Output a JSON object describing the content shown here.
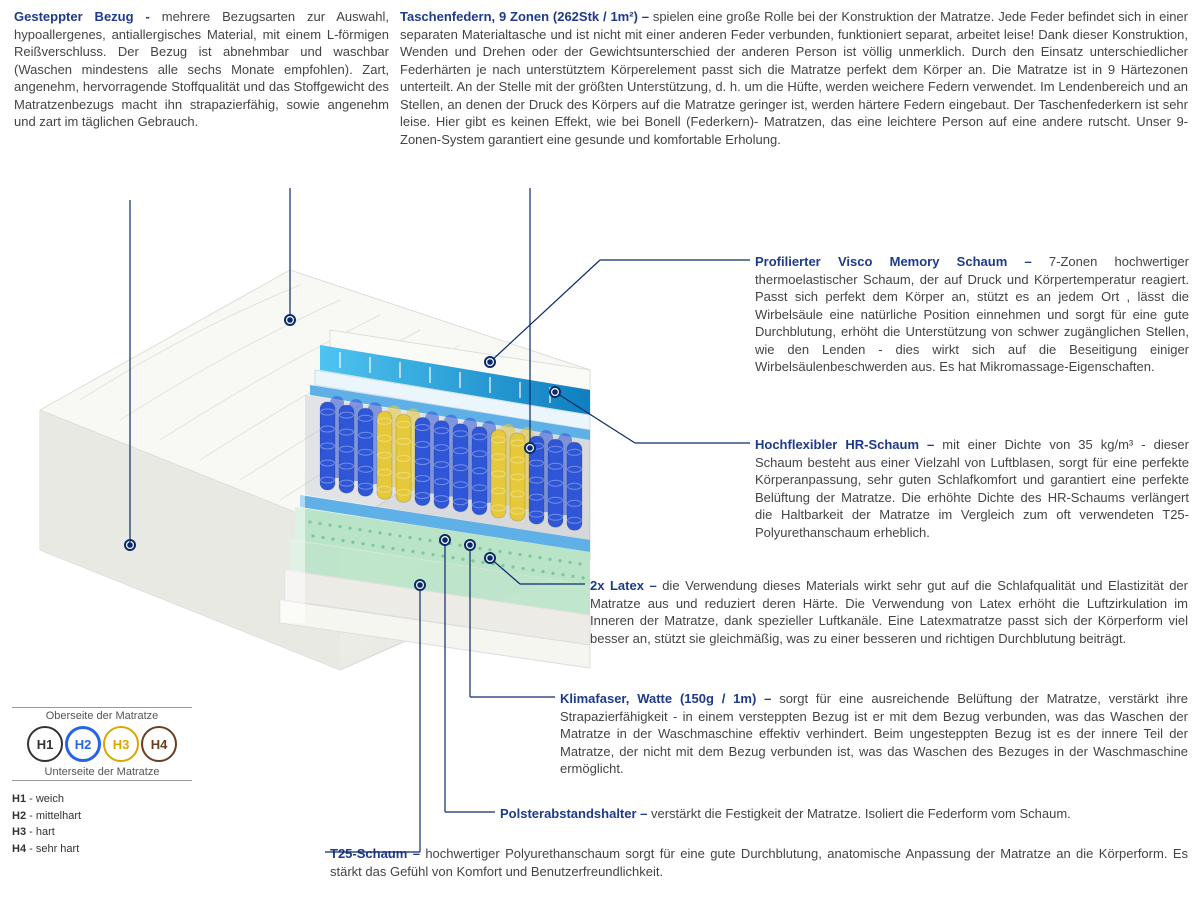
{
  "topLeft": {
    "title": "Gesteppter Bezug - ",
    "body": "mehrere Bezugsarten zur Auswahl, hypoallergenes, antiallergisches Material, mit einem L-förmigen Reißverschluss. Der Bezug ist abnehmbar und waschbar (Waschen mindestens alle sechs Monate empfohlen). Zart, angenehm, hervorragende Stoffqualität und das Stoffgewicht des Matratzenbezugs macht ihn strapazierfähig, sowie angenehm und zart im täglichen Gebrauch."
  },
  "topRight": {
    "title": "Taschenfedern, 9 Zonen (262Stk / 1m²) – ",
    "body": "spielen eine große Rolle bei der Konstruktion der Matratze. Jede Feder befindet sich in einer separaten Materialtasche und ist nicht mit einer anderen Feder verbunden, funktioniert separat, arbeitet leise! Dank dieser Konstruktion, Wenden und Drehen oder der Gewichtsunterschied der anderen Person ist völlig unmerklich. Durch den Einsatz unterschiedlicher Federhärten je nach unterstütztem Körperelement passt sich die Matratze perfekt dem Körper an. Die Matratze ist in 9 Härtezonen unterteilt. An der Stelle mit der größten Unterstützung, d. h. um die Hüfte, werden weichere Federn verwendet. Im Lendenbereich und an Stellen, an denen der Druck des Körpers auf die Matratze geringer ist, werden härtere Federn eingebaut. Der Taschenfederkern ist sehr leise. Hier gibt es keinen Effekt, wie bei Bonell (Federkern)- Matratzen, das eine leichtere Person auf eine andere rutscht. Unser 9-Zonen-System garantiert eine gesunde und komfortable Erholung."
  },
  "right1": {
    "title": "Profilierter Visco Memory Schaum – ",
    "body": "7-Zonen hochwertiger thermoelastischer Schaum, der auf Druck und Körpertemperatur reagiert. Passt sich perfekt dem Körper an, stützt es an jedem Ort , lässt die Wirbelsäule eine natürliche Position einnehmen und sorgt für eine gute Durchblutung, erhöht die Unterstützung von schwer zugänglichen Stellen, wie den Lenden - dies wirkt sich auf die Beseitigung einiger Wirbelsäulenbeschwerden aus. Es hat Mikromassage-Eigenschaften."
  },
  "right2": {
    "title": "Hochflexibler HR-Schaum – ",
    "body": "mit einer Dichte von 35 kg/m³ - dieser Schaum besteht aus einer Vielzahl von Luftblasen, sorgt für eine perfekte Körperanpassung, sehr guten Schlafkomfort und garantiert eine perfekte Belüftung der Matratze. Die erhöhte Dichte des HR-Schaums verlängert die Haltbarkeit der Matratze im Vergleich zum oft verwendeten T25-Polyurethanschaum erheblich."
  },
  "right3": {
    "title": "2x Latex – ",
    "body": "die Verwendung dieses Materials wirkt sehr gut auf die Schlafqualität und Elastizität der Matratze aus und reduziert deren Härte. Die Verwendung von Latex erhöht die Luftzirkulation im Inneren der Matratze, dank spezieller Luftkanäle. Eine Latexmatratze passt sich der Körperform viel besser an, stützt sie gleichmäßig, was zu einer besseren und richtigen Durchblutung beiträgt."
  },
  "right4": {
    "title": "Klimafaser, Watte (150g / 1m) – ",
    "body": "sorgt für eine ausreichende Belüftung der Matratze, verstärkt ihre Strapazierfähigkeit - in einem versteppten Bezug ist er mit dem Bezug verbunden, was das Waschen der Matratze in der Waschmaschine effektiv verhindert. Beim ungesteppten Bezug ist es der innere Teil der Matratze, der nicht mit dem Bezug verbunden ist, was das Waschen des Bezuges in der Waschmaschine ermöglicht."
  },
  "right5": {
    "title": "Polsterabstandshalter – ",
    "body": "verstärkt die Festigkeit der Matratze. Isoliert die Federform vom Schaum."
  },
  "right6": {
    "title": "T25-Schaum – ",
    "body": "hochwertiger Polyurethanschaum sorgt für eine gute Durchblutung, anatomische Anpassung der Matratze an die Körperform. Es stärkt das Gefühl von Komfort und Benutzerfreundlichkeit."
  },
  "hardness": {
    "topLabel": "Oberseite der Matratze",
    "bottomLabel": "Unterseite der Matratze",
    "items": [
      {
        "code": "H1",
        "color": "#333333",
        "fill": "#ffffff"
      },
      {
        "code": "H2",
        "color": "#2563eb",
        "fill": "#ffffff"
      },
      {
        "code": "H3",
        "color": "#d9a800",
        "fill": "#ffffff"
      },
      {
        "code": "H4",
        "color": "#6b3e1f",
        "fill": "#ffffff"
      }
    ],
    "legend": [
      {
        "k": "H1",
        "v": " - weich"
      },
      {
        "k": "H2",
        "v": " - mittelhart"
      },
      {
        "k": "H3",
        "v": " - hart"
      },
      {
        "k": "H4",
        "v": " - sehr hart"
      }
    ]
  },
  "colors": {
    "titleBlue": "#1e3a8a",
    "leaderLine": "#0b2b6b",
    "dot": "#0b2b6b",
    "cover": "#f5f5f2",
    "visco": "#29a3e0",
    "hr": "#e8f4fb",
    "springBlue": "#2f56d6",
    "springYellow": "#e6c93a",
    "latex": "#b9e4c8",
    "spacer": "#5fb0e6",
    "t25": "#ecebe6"
  }
}
